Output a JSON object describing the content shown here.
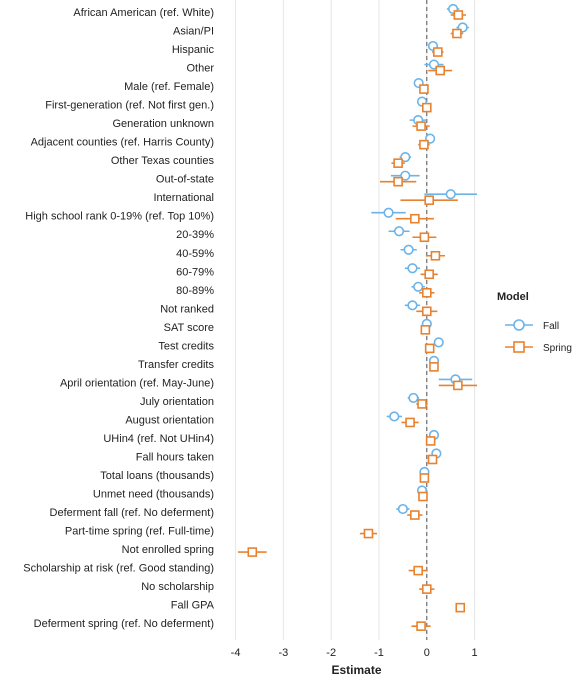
{
  "chart_data": {
    "type": "scatter",
    "subtype": "coefficient-plot-with-error-bars",
    "xlabel": "Estimate",
    "xlim": [
      -4.2,
      1.05
    ],
    "xticks": [
      -4,
      -3,
      -2,
      -1,
      0,
      1
    ],
    "reference_line": 0,
    "grid": "vertical",
    "legend": {
      "title": "Model",
      "position": "right"
    },
    "colors": {
      "Fall": "#6ab4ea",
      "Spring": "#e8822e"
    },
    "series": [
      {
        "name": "Fall",
        "marker": "circle"
      },
      {
        "name": "Spring",
        "marker": "square"
      }
    ],
    "rows": [
      {
        "label": "African American (ref. White)",
        "Fall": [
          0.55,
          0.42,
          0.68
        ],
        "Spring": [
          0.66,
          0.5,
          0.82
        ]
      },
      {
        "label": "Asian/PI",
        "Fall": [
          0.75,
          0.62,
          0.88
        ],
        "Spring": [
          0.63,
          0.5,
          0.76
        ]
      },
      {
        "label": "Hispanic",
        "Fall": [
          0.13,
          0.03,
          0.23
        ],
        "Spring": [
          0.23,
          0.11,
          0.35
        ]
      },
      {
        "label": "Other",
        "Fall": [
          0.15,
          -0.05,
          0.35
        ],
        "Spring": [
          0.28,
          0.03,
          0.53
        ]
      },
      {
        "label": "Male (ref. Female)",
        "Fall": [
          -0.17,
          -0.25,
          -0.09
        ],
        "Spring": [
          -0.06,
          -0.15,
          0.03
        ]
      },
      {
        "label": "First-generation (ref. Not first gen.)",
        "Fall": [
          -0.1,
          -0.19,
          -0.01
        ],
        "Spring": [
          0.0,
          -0.09,
          0.09
        ]
      },
      {
        "label": "Generation unknown",
        "Fall": [
          -0.18,
          -0.36,
          0.0
        ],
        "Spring": [
          -0.12,
          -0.3,
          0.06
        ]
      },
      {
        "label": "Adjacent counties (ref. Harris County)",
        "Fall": [
          0.07,
          -0.03,
          0.17
        ],
        "Spring": [
          -0.06,
          -0.18,
          0.06
        ]
      },
      {
        "label": "Other Texas counties",
        "Fall": [
          -0.45,
          -0.57,
          -0.33
        ],
        "Spring": [
          -0.6,
          -0.74,
          -0.46
        ]
      },
      {
        "label": "Out-of-state",
        "Fall": [
          -0.45,
          -0.75,
          -0.15
        ],
        "Spring": [
          -0.6,
          -0.98,
          -0.22
        ]
      },
      {
        "label": "International",
        "Fall": [
          0.5,
          -0.05,
          1.05
        ],
        "Spring": [
          0.05,
          -0.55,
          0.65
        ]
      },
      {
        "label": "High school rank 0-19% (ref. Top 10%)",
        "Fall": [
          -0.8,
          -1.16,
          -0.44
        ],
        "Spring": [
          -0.25,
          -0.65,
          0.15
        ]
      },
      {
        "label": "20-39%",
        "Fall": [
          -0.58,
          -0.8,
          -0.36
        ],
        "Spring": [
          -0.05,
          -0.3,
          0.2
        ]
      },
      {
        "label": "40-59%",
        "Fall": [
          -0.38,
          -0.55,
          -0.21
        ],
        "Spring": [
          0.18,
          -0.02,
          0.38
        ]
      },
      {
        "label": "60-79%",
        "Fall": [
          -0.3,
          -0.46,
          -0.14
        ],
        "Spring": [
          0.05,
          -0.13,
          0.23
        ]
      },
      {
        "label": "80-89%",
        "Fall": [
          -0.18,
          -0.32,
          -0.04
        ],
        "Spring": [
          0.0,
          -0.16,
          0.16
        ]
      },
      {
        "label": "Not ranked",
        "Fall": [
          -0.3,
          -0.46,
          -0.14
        ],
        "Spring": [
          0.0,
          -0.22,
          0.22
        ]
      },
      {
        "label": "SAT score",
        "Fall": [
          0.0,
          -0.05,
          0.05
        ],
        "Spring": [
          -0.03,
          -0.08,
          0.02
        ]
      },
      {
        "label": "Test credits",
        "Fall": [
          0.25,
          0.22,
          0.28
        ],
        "Spring": [
          0.06,
          0.02,
          0.1
        ]
      },
      {
        "label": "Transfer credits",
        "Fall": [
          0.15,
          0.11,
          0.19
        ],
        "Spring": [
          0.15,
          0.11,
          0.19
        ]
      },
      {
        "label": "April orientation (ref. May-June)",
        "Fall": [
          0.6,
          0.25,
          0.95
        ],
        "Spring": [
          0.65,
          0.25,
          1.05
        ]
      },
      {
        "label": "July orientation",
        "Fall": [
          -0.28,
          -0.4,
          -0.16
        ],
        "Spring": [
          -0.1,
          -0.22,
          0.02
        ]
      },
      {
        "label": "August orientation",
        "Fall": [
          -0.68,
          -0.84,
          -0.52
        ],
        "Spring": [
          -0.35,
          -0.53,
          -0.17
        ]
      },
      {
        "label": "UHin4 (ref. Not UHin4)",
        "Fall": [
          0.15,
          0.07,
          0.23
        ],
        "Spring": [
          0.08,
          -0.02,
          0.18
        ]
      },
      {
        "label": "Fall hours taken",
        "Fall": [
          0.2,
          0.15,
          0.25
        ],
        "Spring": [
          0.12,
          0.07,
          0.17
        ]
      },
      {
        "label": "Total loans (thousands)",
        "Fall": [
          -0.05,
          -0.08,
          -0.02
        ],
        "Spring": [
          -0.05,
          -0.08,
          -0.02
        ]
      },
      {
        "label": "Unmet need (thousands)",
        "Fall": [
          -0.1,
          -0.13,
          -0.07
        ],
        "Spring": [
          -0.08,
          -0.11,
          -0.05
        ]
      },
      {
        "label": "Deferment fall (ref. No deferment)",
        "Fall": [
          -0.5,
          -0.64,
          -0.36
        ],
        "Spring": [
          -0.25,
          -0.41,
          -0.09
        ]
      },
      {
        "label": "Part-time spring (ref. Full-time)",
        "Fall": null,
        "Spring": [
          -1.22,
          -1.4,
          -1.04
        ]
      },
      {
        "label": "Not enrolled spring",
        "Fall": null,
        "Spring": [
          -3.65,
          -3.95,
          -3.35
        ]
      },
      {
        "label": "Scholarship at risk (ref. Good standing)",
        "Fall": null,
        "Spring": [
          -0.18,
          -0.38,
          0.02
        ]
      },
      {
        "label": "No scholarship",
        "Fall": null,
        "Spring": [
          0.0,
          -0.16,
          0.16
        ]
      },
      {
        "label": "Fall GPA",
        "Fall": null,
        "Spring": [
          0.7,
          0.66,
          0.74
        ]
      },
      {
        "label": "Deferment spring (ref. No deferment)",
        "Fall": null,
        "Spring": [
          -0.12,
          -0.32,
          0.08
        ]
      }
    ]
  }
}
